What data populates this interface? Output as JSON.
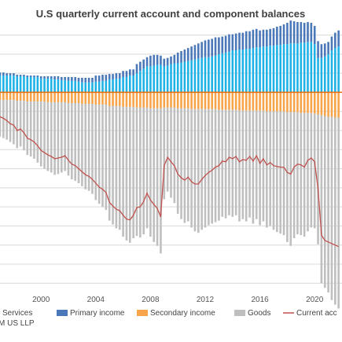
{
  "chart_data": {
    "type": "bar",
    "title": "U.S quarterly current account and component balances",
    "xlabel": "",
    "ylabel": "",
    "source_text": "M US LLP",
    "x_ticks": [
      "2000",
      "2004",
      "2008",
      "2012",
      "2016",
      "2020"
    ],
    "xlim": [
      1997.0,
      2022.0
    ],
    "ylim": [
      -260,
      90
    ],
    "grid": true,
    "colors": {
      "services": "#1fb2e6",
      "primary_income": "#4a78b8",
      "secondary_income": "#f7a44a",
      "goods": "#bfbfbf",
      "current_account": "#c0504d"
    },
    "legend": [
      "Services",
      "Primary income",
      "Secondary income",
      "Goods",
      "Current acc"
    ],
    "x": [
      1997.0,
      1997.25,
      1997.5,
      1997.75,
      1998.0,
      1998.25,
      1998.5,
      1998.75,
      1999.0,
      1999.25,
      1999.5,
      1999.75,
      2000.0,
      2000.25,
      2000.5,
      2000.75,
      2001.0,
      2001.25,
      2001.5,
      2001.75,
      2002.0,
      2002.25,
      2002.5,
      2002.75,
      2003.0,
      2003.25,
      2003.5,
      2003.75,
      2004.0,
      2004.25,
      2004.5,
      2004.75,
      2005.0,
      2005.25,
      2005.5,
      2005.75,
      2006.0,
      2006.25,
      2006.5,
      2006.75,
      2007.0,
      2007.25,
      2007.5,
      2007.75,
      2008.0,
      2008.25,
      2008.5,
      2008.75,
      2009.0,
      2009.25,
      2009.5,
      2009.75,
      2010.0,
      2010.25,
      2010.5,
      2010.75,
      2011.0,
      2011.25,
      2011.5,
      2011.75,
      2012.0,
      2012.25,
      2012.5,
      2012.75,
      2013.0,
      2013.25,
      2013.5,
      2013.75,
      2014.0,
      2014.25,
      2014.5,
      2014.75,
      2015.0,
      2015.25,
      2015.5,
      2015.75,
      2016.0,
      2016.25,
      2016.5,
      2016.75,
      2017.0,
      2017.25,
      2017.5,
      2017.75,
      2018.0,
      2018.25,
      2018.5,
      2018.75,
      2019.0,
      2019.25,
      2019.5,
      2019.75,
      2020.0,
      2020.25,
      2020.5,
      2020.75,
      2021.0,
      2021.25,
      2021.5,
      2021.75
    ],
    "series": [
      {
        "name": "Services",
        "values": [
          22,
          22,
          22,
          22,
          22,
          21,
          21,
          21,
          20,
          20,
          20,
          20,
          18,
          18,
          18,
          18,
          17,
          17,
          16,
          16,
          15,
          15,
          15,
          14,
          13,
          13,
          13,
          13,
          14,
          14,
          15,
          15,
          17,
          17,
          18,
          18,
          20,
          20,
          22,
          22,
          25,
          28,
          31,
          34,
          34,
          35,
          36,
          36,
          34,
          35,
          37,
          38,
          38,
          39,
          40,
          41,
          42,
          43,
          44,
          45,
          46,
          46,
          47,
          48,
          50,
          51,
          52,
          53,
          55,
          55,
          56,
          56,
          57,
          57,
          58,
          59,
          59,
          60,
          60,
          61,
          61,
          62,
          62,
          63,
          63,
          64,
          64,
          64,
          65,
          65,
          66,
          66,
          63,
          45,
          45,
          47,
          50,
          55,
          58,
          60
        ]
      },
      {
        "name": "Primary income",
        "values": [
          4,
          4,
          3,
          3,
          3,
          2,
          2,
          2,
          2,
          2,
          2,
          2,
          3,
          3,
          3,
          3,
          4,
          4,
          4,
          4,
          5,
          5,
          5,
          5,
          6,
          6,
          6,
          6,
          8,
          8,
          8,
          8,
          7,
          7,
          7,
          7,
          8,
          8,
          8,
          8,
          12,
          12,
          12,
          12,
          14,
          14,
          13,
          12,
          10,
          10,
          10,
          11,
          14,
          15,
          16,
          17,
          18,
          19,
          20,
          21,
          22,
          23,
          23,
          24,
          22,
          22,
          22,
          23,
          21,
          22,
          22,
          22,
          23,
          23,
          24,
          24,
          22,
          22,
          22,
          22,
          23,
          24,
          25,
          26,
          28,
          30,
          29,
          28,
          27,
          26,
          26,
          25,
          24,
          22,
          18,
          17,
          16,
          18,
          20,
          21
        ]
      },
      {
        "name": "Secondary income",
        "values": [
          -10,
          -10,
          -10,
          -10,
          -10,
          -11,
          -11,
          -11,
          -12,
          -12,
          -12,
          -12,
          -12,
          -12,
          -13,
          -13,
          -13,
          -13,
          -13,
          -13,
          -14,
          -14,
          -14,
          -14,
          -15,
          -15,
          -15,
          -15,
          -16,
          -16,
          -16,
          -16,
          -18,
          -18,
          -18,
          -18,
          -19,
          -19,
          -19,
          -19,
          -20,
          -20,
          -20,
          -20,
          -21,
          -21,
          -21,
          -21,
          -20,
          -20,
          -20,
          -20,
          -21,
          -21,
          -21,
          -21,
          -22,
          -22,
          -22,
          -22,
          -22,
          -22,
          -22,
          -22,
          -23,
          -23,
          -23,
          -23,
          -23,
          -23,
          -24,
          -24,
          -24,
          -24,
          -24,
          -24,
          -24,
          -24,
          -25,
          -25,
          -25,
          -25,
          -25,
          -25,
          -26,
          -26,
          -26,
          -26,
          -27,
          -27,
          -27,
          -27,
          -28,
          -29,
          -30,
          -31,
          -32,
          -32,
          -33,
          -33
        ]
      },
      {
        "name": "Goods",
        "values": [
          -48,
          -50,
          -52,
          -55,
          -58,
          -62,
          -60,
          -65,
          -70,
          -72,
          -75,
          -80,
          -85,
          -88,
          -90,
          -92,
          -95,
          -94,
          -92,
          -90,
          -95,
          -100,
          -102,
          -105,
          -108,
          -112,
          -114,
          -118,
          -125,
          -130,
          -134,
          -138,
          -150,
          -155,
          -160,
          -162,
          -170,
          -175,
          -178,
          -172,
          -168,
          -170,
          -166,
          -158,
          -168,
          -175,
          -180,
          -190,
          -120,
          -110,
          -118,
          -125,
          -138,
          -145,
          -150,
          -148,
          -155,
          -160,
          -162,
          -158,
          -155,
          -152,
          -150,
          -148,
          -145,
          -140,
          -142,
          -138,
          -140,
          -138,
          -145,
          -142,
          -145,
          -140,
          -148,
          -142,
          -150,
          -145,
          -152,
          -150,
          -155,
          -158,
          -160,
          -162,
          -170,
          -175,
          -165,
          -160,
          -160,
          -162,
          -155,
          -150,
          -150,
          -170,
          -220,
          -225,
          -230,
          -240,
          -245,
          -250
        ]
      },
      {
        "name": "Current account",
        "values": [
          -32,
          -34,
          -37,
          -41,
          -43,
          -50,
          -48,
          -53,
          -60,
          -62,
          -65,
          -70,
          -76,
          -79,
          -82,
          -84,
          -87,
          -86,
          -85,
          -83,
          -89,
          -94,
          -96,
          -100,
          -104,
          -108,
          -110,
          -114,
          -119,
          -124,
          -127,
          -131,
          -144,
          -149,
          -153,
          -155,
          -161,
          -166,
          -167,
          -161,
          -151,
          -150,
          -143,
          -132,
          -141,
          -147,
          -152,
          -163,
          -96,
          -85,
          -91,
          -96,
          -107,
          -112,
          -115,
          -111,
          -117,
          -120,
          -120,
          -114,
          -109,
          -105,
          -102,
          -98,
          -96,
          -90,
          -91,
          -85,
          -87,
          -84,
          -91,
          -88,
          -89,
          -84,
          -90,
          -83,
          -93,
          -87,
          -95,
          -92,
          -96,
          -97,
          -98,
          -98,
          -105,
          -107,
          -98,
          -94,
          -95,
          -98,
          -89,
          -86,
          -91,
          -127,
          -187,
          -194,
          -196,
          -198,
          -200,
          -202
        ]
      }
    ]
  }
}
